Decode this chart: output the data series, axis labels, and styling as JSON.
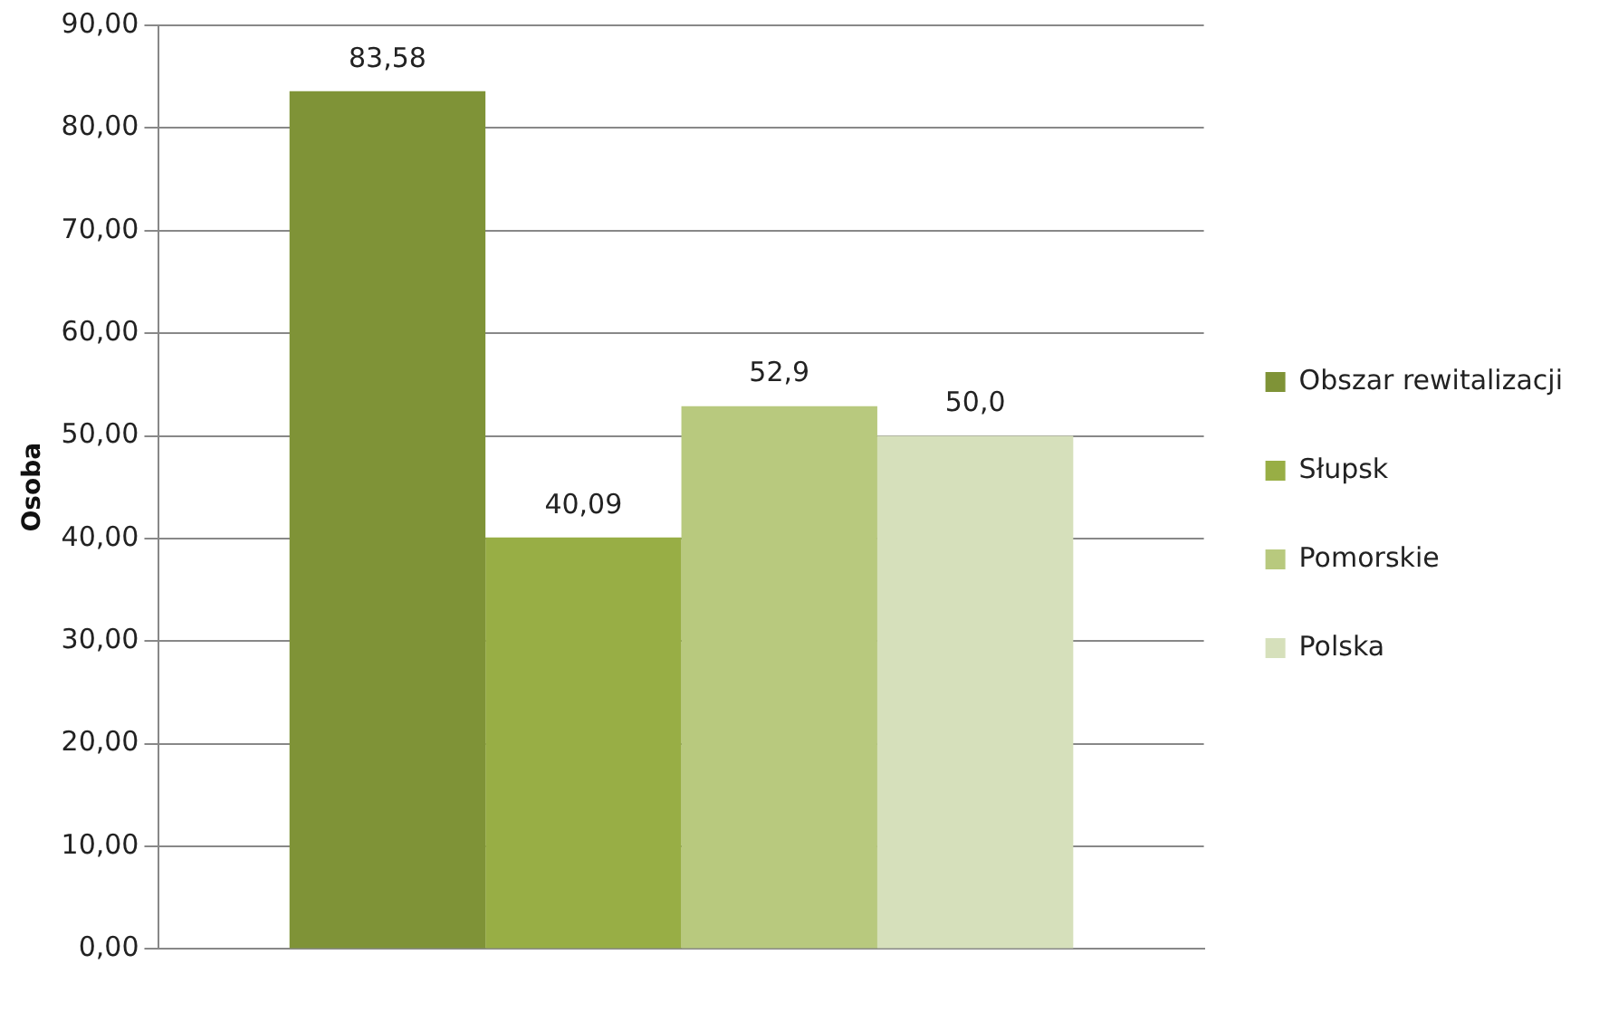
{
  "chart_data": {
    "type": "bar",
    "ylabel": "Osoba",
    "categories": [
      null
    ],
    "series": [
      {
        "name": "Obszar rewitalizacji",
        "color": "#7f9337",
        "values": [
          83.58
        ],
        "value_labels": [
          "83,58"
        ]
      },
      {
        "name": "Słupsk",
        "color": "#98ae45",
        "values": [
          40.09
        ],
        "value_labels": [
          "40,09"
        ]
      },
      {
        "name": "Pomorskie",
        "color": "#b8c97e",
        "values": [
          52.9
        ],
        "value_labels": [
          "52,9"
        ]
      },
      {
        "name": "Polska",
        "color": "#d6e0bb",
        "values": [
          50.0
        ],
        "value_labels": [
          "50,0"
        ]
      }
    ],
    "ylim": [
      0,
      90
    ],
    "yticks": [
      {
        "value": 0,
        "label": "0,00"
      },
      {
        "value": 10,
        "label": "10,00"
      },
      {
        "value": 20,
        "label": "20,00"
      },
      {
        "value": 30,
        "label": "30,00"
      },
      {
        "value": 40,
        "label": "40,00"
      },
      {
        "value": 50,
        "label": "50,00"
      },
      {
        "value": 60,
        "label": "60,00"
      },
      {
        "value": 70,
        "label": "70,00"
      },
      {
        "value": 80,
        "label": "80,00"
      },
      {
        "value": 90,
        "label": "90,00"
      }
    ],
    "grid": "y",
    "legend": "right"
  }
}
